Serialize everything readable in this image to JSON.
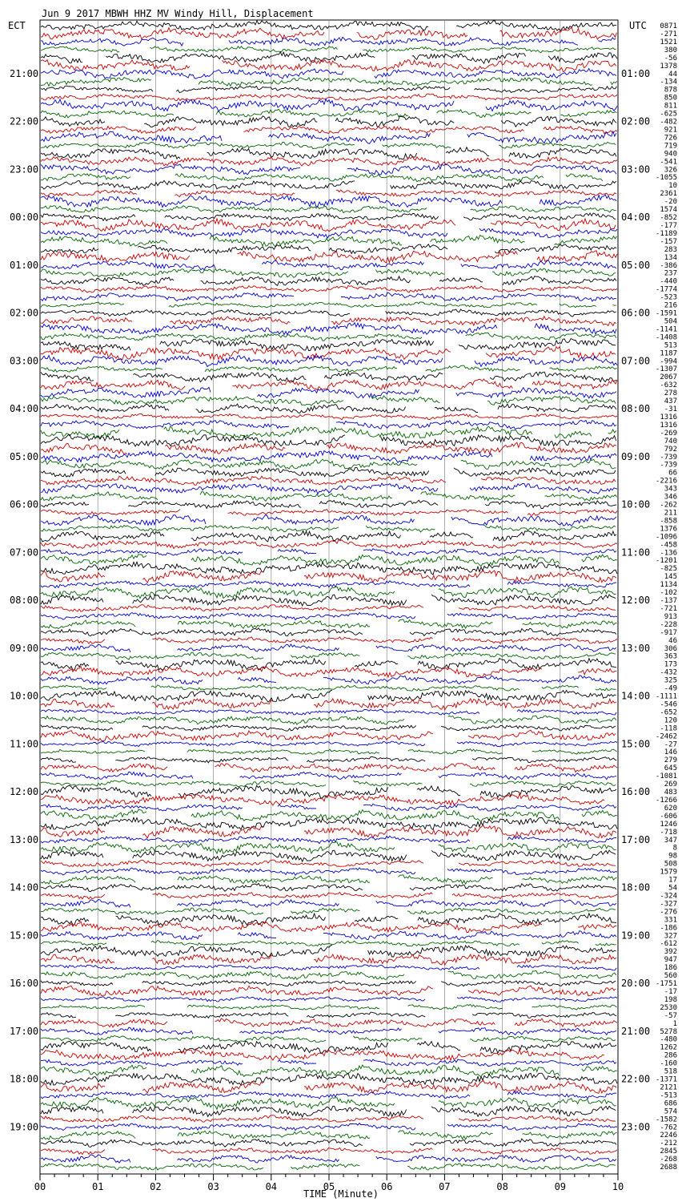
{
  "chart_data": {
    "type": "line",
    "title": "Jun  9 2017 MBWH HHZ MV Windy Hill, Displacement",
    "left_axis_label": "ECT",
    "right_axis_label": "UTC",
    "xlabel": "TIME (Minute)",
    "x_ticks": [
      "00",
      "01",
      "02",
      "03",
      "04",
      "05",
      "06",
      "07",
      "08",
      "09",
      "10"
    ],
    "xlim": [
      0,
      10
    ],
    "left_hour_labels": [
      "21:00",
      "22:00",
      "23:00",
      "00:00",
      "01:00",
      "02:00",
      "03:00",
      "04:00",
      "05:00",
      "06:00",
      "07:00",
      "08:00",
      "09:00",
      "10:00",
      "11:00",
      "12:00",
      "13:00",
      "14:00",
      "15:00",
      "16:00",
      "17:00",
      "18:00",
      "19:00"
    ],
    "right_hour_labels": [
      "01:00",
      "02:00",
      "03:00",
      "04:00",
      "05:00",
      "06:00",
      "07:00",
      "08:00",
      "09:00",
      "10:00",
      "11:00",
      "12:00",
      "13:00",
      "14:00",
      "15:00",
      "16:00",
      "17:00",
      "18:00",
      "19:00",
      "20:00",
      "21:00",
      "22:00",
      "23:00"
    ],
    "trace_colors": [
      "#000000",
      "#cc0000",
      "#0000cc",
      "#006600"
    ],
    "grid": true,
    "trace_values": [
      "0871",
      "-271",
      "1521",
      "380",
      "-56",
      "1378",
      "44",
      "-134",
      "878",
      "850",
      "811",
      "-625",
      "-482",
      "921",
      "726",
      "719",
      "940",
      "-541",
      "326",
      "-1055",
      "10",
      "2361",
      "-20",
      "1574",
      "-852",
      "-177",
      "-1189",
      "-157",
      "283",
      "134",
      "-386",
      "237",
      "-440",
      "-1774",
      "-523",
      "216",
      "-1591",
      "504",
      "-1141",
      "-1408",
      "513",
      "1187",
      "-994",
      "-1307",
      "2067",
      "-632",
      "278",
      "437",
      "-31",
      "1316",
      "1316",
      "-269",
      "740",
      "792",
      "-739",
      "-739",
      "66",
      "-2216",
      "343",
      "346",
      "-262",
      "211",
      "-858",
      "1376",
      "-1096",
      "-458",
      "-136",
      "-1201",
      "-825",
      "145",
      "1134",
      "-102",
      "-137",
      "-721",
      "913",
      "-228",
      "-917",
      "46",
      "306",
      "363",
      "173",
      "-432",
      "325",
      "-49",
      "-1111",
      "-546",
      "-652",
      "120",
      "-118",
      "-2462",
      "-27",
      "146",
      "279",
      "645",
      "-1081",
      "269",
      "483",
      "-1266",
      "620",
      "-606",
      "1246",
      "-718",
      "347",
      "8",
      "98",
      "508",
      "1579",
      "17",
      "54",
      "-324",
      "-327",
      "-276",
      "331",
      "-186",
      "327",
      "-612",
      "392",
      "947",
      "186",
      "560",
      "-1751",
      "-17",
      "198",
      "2530",
      "-57",
      "1",
      "5278",
      "-480",
      "1262",
      "286",
      "-160",
      "518",
      "-1371",
      "2121",
      "-513",
      "686",
      "574",
      "-1582",
      "-762",
      "2246",
      "-212",
      "2845",
      "-268",
      "2688"
    ]
  }
}
